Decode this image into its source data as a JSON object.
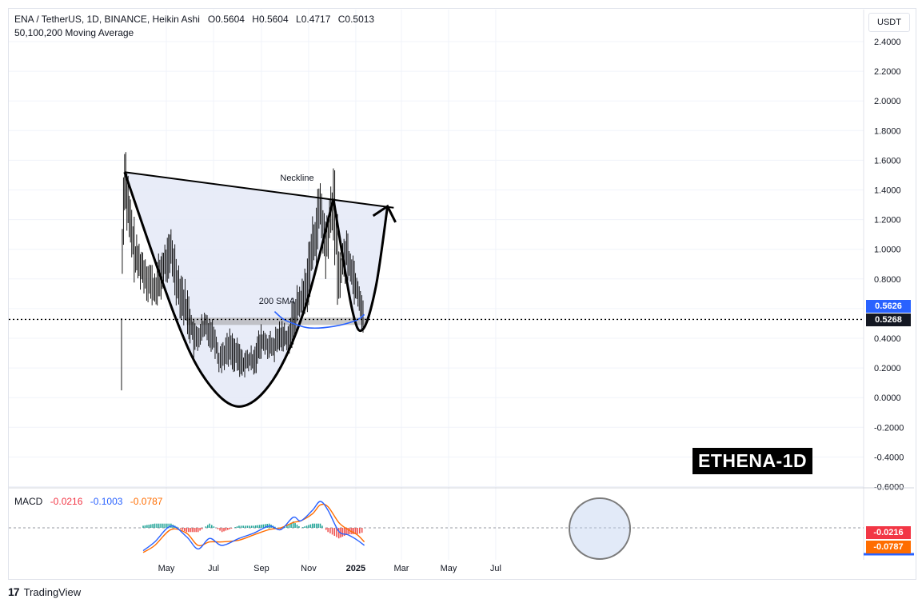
{
  "header": {
    "symbol": "ENA / TetherUS, 1D, BINANCE, Heikin Ashi",
    "ohlc": [
      {
        "k": "O",
        "v": "0.5604"
      },
      {
        "k": "H",
        "v": "0.5604"
      },
      {
        "k": "L",
        "v": "0.4717"
      },
      {
        "k": "C",
        "v": "0.5013"
      }
    ],
    "indicator": "50,100,200 Moving Average"
  },
  "unit": "USDT",
  "price_tags": {
    "sma": "0.5626",
    "last": "0.5268",
    "macd_hist": "-0.0216",
    "macd_signal": "-0.0787"
  },
  "macd": {
    "label": "MACD",
    "hist": "-0.0216",
    "macd": "-0.1003",
    "signal": "-0.0787"
  },
  "watermark": "ETHENA-1D",
  "footer": {
    "brand": "TradingView"
  },
  "colors": {
    "sma": "#2962ff",
    "macd_line": "#2962ff",
    "signal_line": "#ff6d00",
    "hist_pos": "#26a69a",
    "hist_neg": "#ef5350",
    "pattern_fill": "#e4e9f7"
  },
  "chart_data": {
    "type": "candlestick",
    "title": "ENA / TetherUS, 1D, BINANCE, Heikin Ashi",
    "ylabel": "USDT",
    "ylim": [
      -0.6,
      2.5
    ],
    "y_ticks": [
      "2.4000",
      "2.2000",
      "2.0000",
      "1.8000",
      "1.6000",
      "1.4000",
      "1.2000",
      "1.0000",
      "0.8000",
      "0.6000",
      "0.4000",
      "0.2000",
      "0.0000",
      "-0.2000",
      "-0.4000",
      "-0.6000"
    ],
    "x_ticks": [
      "May",
      "Jul",
      "Sep",
      "Nov",
      "2025",
      "Mar",
      "May",
      "Jul"
    ],
    "annotations": [
      {
        "text": "Neckline",
        "x": "2024-11-15",
        "y": 1.45
      },
      {
        "text": "200 SMA",
        "x": "2024-10-20",
        "y": 0.61
      },
      {
        "text": "0.5268",
        "y": 0.5268
      }
    ],
    "neckline": [
      {
        "x": "2024-04-06",
        "y": 1.52
      },
      {
        "x": "2025-03-20",
        "y": 1.28
      }
    ],
    "support_zone": [
      0.49,
      0.54
    ],
    "price_path": [
      {
        "x": "2024-04-02",
        "y": 0.3
      },
      {
        "x": "2024-04-03",
        "y": 1.0
      },
      {
        "x": "2024-04-06",
        "y": 1.53
      },
      {
        "x": "2024-04-12",
        "y": 1.2
      },
      {
        "x": "2024-04-20",
        "y": 0.95
      },
      {
        "x": "2024-05-01",
        "y": 0.85
      },
      {
        "x": "2024-05-15",
        "y": 0.72
      },
      {
        "x": "2024-05-28",
        "y": 0.9
      },
      {
        "x": "2024-06-05",
        "y": 0.98
      },
      {
        "x": "2024-06-15",
        "y": 0.75
      },
      {
        "x": "2024-06-28",
        "y": 0.55
      },
      {
        "x": "2024-07-06",
        "y": 0.38
      },
      {
        "x": "2024-07-20",
        "y": 0.48
      },
      {
        "x": "2024-08-01",
        "y": 0.4
      },
      {
        "x": "2024-08-06",
        "y": 0.26
      },
      {
        "x": "2024-08-20",
        "y": 0.34
      },
      {
        "x": "2024-09-05",
        "y": 0.23
      },
      {
        "x": "2024-09-20",
        "y": 0.26
      },
      {
        "x": "2024-10-01",
        "y": 0.38
      },
      {
        "x": "2024-10-15",
        "y": 0.33
      },
      {
        "x": "2024-10-25",
        "y": 0.42
      },
      {
        "x": "2024-11-05",
        "y": 0.4
      },
      {
        "x": "2024-11-15",
        "y": 0.62
      },
      {
        "x": "2024-11-25",
        "y": 0.7
      },
      {
        "x": "2024-12-05",
        "y": 1.0
      },
      {
        "x": "2024-12-15",
        "y": 1.28
      },
      {
        "x": "2024-12-22",
        "y": 1.0
      },
      {
        "x": "2025-01-01",
        "y": 1.33
      },
      {
        "x": "2025-01-08",
        "y": 0.82
      },
      {
        "x": "2025-01-18",
        "y": 0.98
      },
      {
        "x": "2025-01-28",
        "y": 0.8
      },
      {
        "x": "2025-02-05",
        "y": 0.65
      },
      {
        "x": "2025-02-10",
        "y": 0.5
      }
    ],
    "cup": [
      {
        "x": "2024-04-06",
        "y": 1.52
      },
      {
        "x": "2024-06-10",
        "y": 0.55
      },
      {
        "x": "2024-07-20",
        "y": 0.12
      },
      {
        "x": "2024-09-01",
        "y": -0.06
      },
      {
        "x": "2024-10-15",
        "y": 0.12
      },
      {
        "x": "2024-11-25",
        "y": 0.6
      },
      {
        "x": "2025-01-01",
        "y": 1.34
      }
    ],
    "handle": [
      {
        "x": "2025-01-01",
        "y": 1.34
      },
      {
        "x": "2025-01-25",
        "y": 0.6
      },
      {
        "x": "2025-02-08",
        "y": 0.46
      },
      {
        "x": "2025-02-25",
        "y": 0.75
      },
      {
        "x": "2025-03-12",
        "y": 1.29
      }
    ],
    "sma200": [
      {
        "x": "2024-10-17",
        "y": 0.58
      },
      {
        "x": "2024-10-28",
        "y": 0.53
      },
      {
        "x": "2024-11-10",
        "y": 0.5
      },
      {
        "x": "2024-12-01",
        "y": 0.47
      },
      {
        "x": "2025-01-01",
        "y": 0.48
      },
      {
        "x": "2025-01-30",
        "y": 0.52
      },
      {
        "x": "2025-02-10",
        "y": 0.56
      }
    ],
    "macd_panel": {
      "ylim": [
        -0.2,
        0.2
      ],
      "zero_line": 0,
      "macd": [
        {
          "x": "2024-04-30",
          "y": -0.13
        },
        {
          "x": "2024-05-15",
          "y": -0.08
        },
        {
          "x": "2024-06-05",
          "y": 0.01
        },
        {
          "x": "2024-06-25",
          "y": -0.05
        },
        {
          "x": "2024-07-10",
          "y": -0.12
        },
        {
          "x": "2024-07-25",
          "y": -0.06
        },
        {
          "x": "2024-08-10",
          "y": -0.1
        },
        {
          "x": "2024-09-01",
          "y": -0.06
        },
        {
          "x": "2024-09-20",
          "y": -0.03
        },
        {
          "x": "2024-10-10",
          "y": 0.01
        },
        {
          "x": "2024-10-25",
          "y": -0.01
        },
        {
          "x": "2024-11-10",
          "y": 0.06
        },
        {
          "x": "2024-11-20",
          "y": 0.04
        },
        {
          "x": "2024-12-05",
          "y": 0.1
        },
        {
          "x": "2024-12-15",
          "y": 0.15
        },
        {
          "x": "2024-12-25",
          "y": 0.1
        },
        {
          "x": "2025-01-08",
          "y": -0.02
        },
        {
          "x": "2025-01-20",
          "y": -0.04
        },
        {
          "x": "2025-02-01",
          "y": -0.07
        },
        {
          "x": "2025-02-10",
          "y": -0.1
        }
      ],
      "signal": [
        {
          "x": "2024-04-30",
          "y": -0.14
        },
        {
          "x": "2024-05-15",
          "y": -0.1
        },
        {
          "x": "2024-06-05",
          "y": -0.01
        },
        {
          "x": "2024-06-25",
          "y": -0.03
        },
        {
          "x": "2024-07-10",
          "y": -0.1
        },
        {
          "x": "2024-07-25",
          "y": -0.08
        },
        {
          "x": "2024-08-10",
          "y": -0.08
        },
        {
          "x": "2024-09-01",
          "y": -0.07
        },
        {
          "x": "2024-09-20",
          "y": -0.04
        },
        {
          "x": "2024-10-10",
          "y": -0.01
        },
        {
          "x": "2024-10-25",
          "y": 0.0
        },
        {
          "x": "2024-11-10",
          "y": 0.03
        },
        {
          "x": "2024-11-20",
          "y": 0.04
        },
        {
          "x": "2024-12-05",
          "y": 0.08
        },
        {
          "x": "2024-12-15",
          "y": 0.13
        },
        {
          "x": "2024-12-25",
          "y": 0.12
        },
        {
          "x": "2025-01-08",
          "y": 0.03
        },
        {
          "x": "2025-01-20",
          "y": -0.01
        },
        {
          "x": "2025-02-01",
          "y": -0.04
        },
        {
          "x": "2025-02-10",
          "y": -0.08
        }
      ]
    }
  }
}
